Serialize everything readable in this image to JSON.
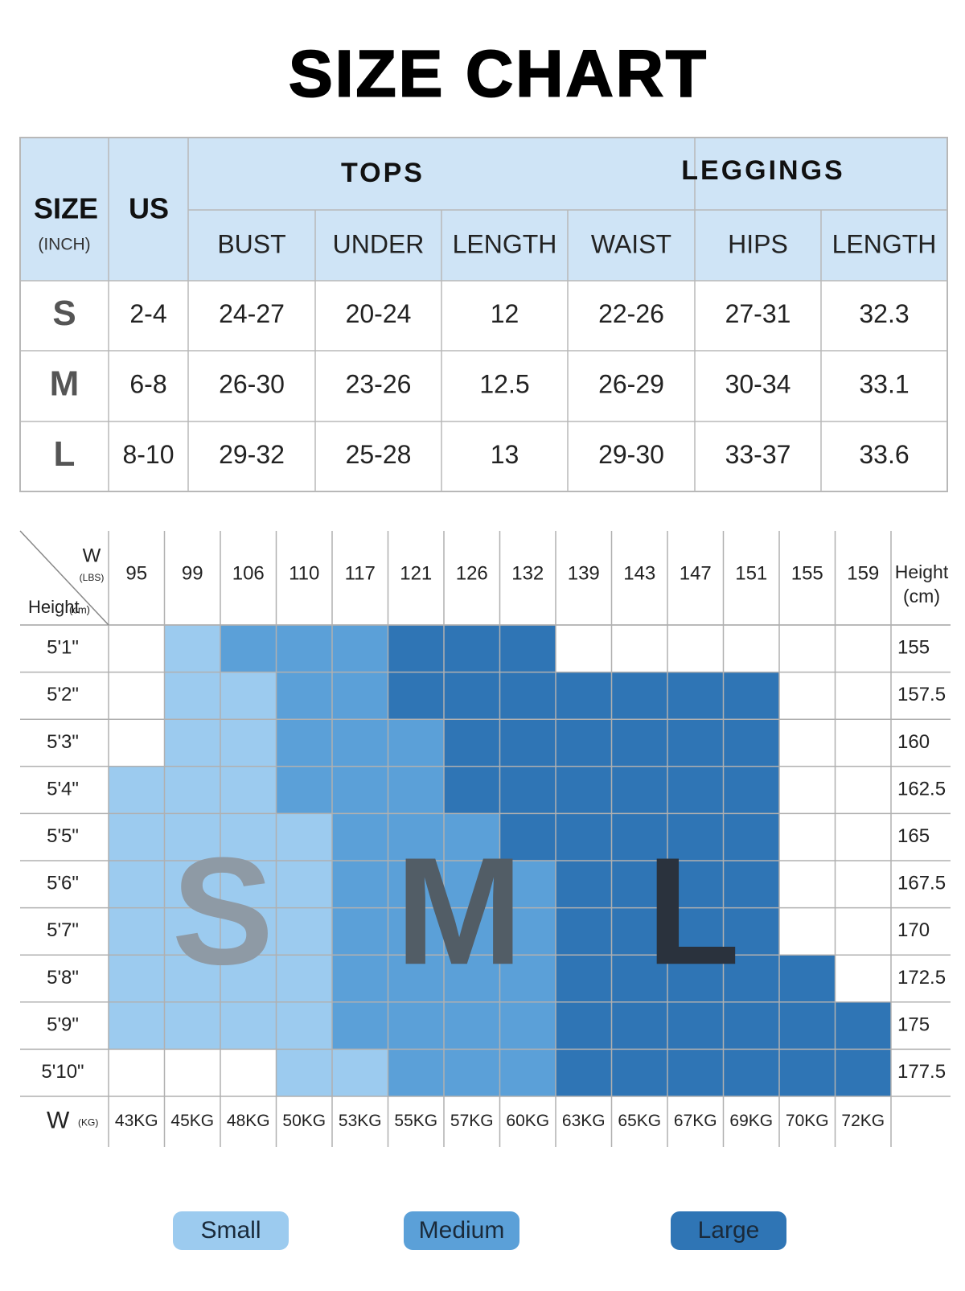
{
  "title": "SIZE CHART",
  "size_table": {
    "size_header": "SIZE",
    "size_unit": "(INCH)",
    "us_header": "US",
    "groups": [
      "TOPS",
      "LEGGINGS"
    ],
    "columns": [
      "BUST",
      "UNDER",
      "LENGTH",
      "WAIST",
      "HIPS",
      "LENGTH"
    ],
    "rows": [
      [
        "S",
        "2-4",
        "24-27",
        "20-24",
        12,
        "22-26",
        "27-31",
        32.3
      ],
      [
        "M",
        "6-8",
        "26-30",
        "23-26",
        12.5,
        "26-29",
        "30-34",
        33.1
      ],
      [
        "L",
        "8-10",
        "29-32",
        "25-28",
        13,
        "29-30",
        "33-37",
        33.6
      ]
    ]
  },
  "fit_grid": {
    "weight_label": "W",
    "weight_unit": "(LBS)",
    "height_label": "Height",
    "height_unit": "(cm)",
    "weights_lbs": [
      95,
      99,
      106,
      110,
      117,
      121,
      126,
      132,
      139,
      143,
      147,
      151,
      155,
      159
    ],
    "heights_ft": [
      "5'1\"",
      "5'2\"",
      "5'3\"",
      "5'4\"",
      "5'5\"",
      "5'6\"",
      "5'7\"",
      "5'8\"",
      "5'9\"",
      "5'10\""
    ],
    "heights_cm": [
      155,
      157.5,
      160,
      162.5,
      165,
      167.5,
      170,
      172.5,
      175,
      177.5
    ],
    "kg_label": "W",
    "kg_unit": "(KG)",
    "weights_kg": [
      "43KG",
      "45KG",
      "48KG",
      "50KG",
      "53KG",
      "55KG",
      "57KG",
      "60KG",
      "63KG",
      "65KG",
      "67KG",
      "69KG",
      "70KG",
      "72KG"
    ],
    "size_labels": [
      "S",
      "M",
      "L"
    ]
  },
  "legend": [
    "Small",
    "Medium",
    "Large"
  ]
}
